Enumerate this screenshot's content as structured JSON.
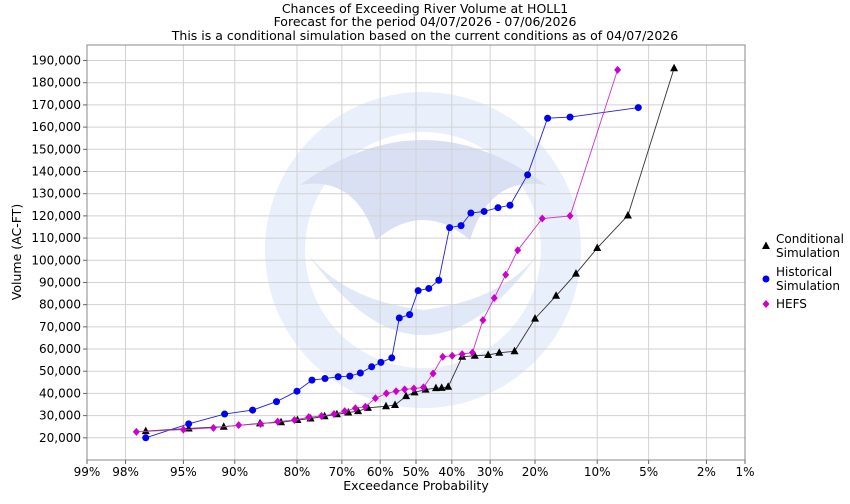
{
  "chart_data": {
    "type": "line",
    "title": "Chances of Exceeding River Volume at HOLL1",
    "subtitle_1": "Forecast for the period 04/07/2026 - 07/06/2026",
    "subtitle_2": "This is a conditional simulation based on the current conditions as of 04/07/2026",
    "xlabel": "Exceedance Probability",
    "ylabel": "Volume (AC-FT)",
    "x_scale": "normal-probability",
    "x_ticks": [
      {
        "value": 99,
        "label": "99%"
      },
      {
        "value": 98,
        "label": "98%"
      },
      {
        "value": 95,
        "label": "95%"
      },
      {
        "value": 90,
        "label": "90%"
      },
      {
        "value": 80,
        "label": "80%"
      },
      {
        "value": 70,
        "label": "70%"
      },
      {
        "value": 60,
        "label": "60%"
      },
      {
        "value": 50,
        "label": "50%"
      },
      {
        "value": 40,
        "label": "40%"
      },
      {
        "value": 30,
        "label": "30%"
      },
      {
        "value": 20,
        "label": "20%"
      },
      {
        "value": 10,
        "label": "10%"
      },
      {
        "value": 5,
        "label": "5%"
      },
      {
        "value": 2,
        "label": "2%"
      },
      {
        "value": 1,
        "label": "1%"
      }
    ],
    "ylim": [
      10000,
      197000
    ],
    "y_ticks": [
      {
        "value": 20000,
        "label": "20,000"
      },
      {
        "value": 30000,
        "label": "30,000"
      },
      {
        "value": 40000,
        "label": "40,000"
      },
      {
        "value": 50000,
        "label": "50,000"
      },
      {
        "value": 60000,
        "label": "60,000"
      },
      {
        "value": 70000,
        "label": "70,000"
      },
      {
        "value": 80000,
        "label": "80,000"
      },
      {
        "value": 90000,
        "label": "90,000"
      },
      {
        "value": 100000,
        "label": "100,000"
      },
      {
        "value": 110000,
        "label": "110,000"
      },
      {
        "value": 120000,
        "label": "120,000"
      },
      {
        "value": 130000,
        "label": "130,000"
      },
      {
        "value": 140000,
        "label": "140,000"
      },
      {
        "value": 150000,
        "label": "150,000"
      },
      {
        "value": 160000,
        "label": "160,000"
      },
      {
        "value": 170000,
        "label": "170,000"
      },
      {
        "value": 180000,
        "label": "180,000"
      },
      {
        "value": 190000,
        "label": "190,000"
      }
    ],
    "grid": true,
    "legend_position": "right",
    "series": [
      {
        "name": "Conditional Simulation",
        "legend_lines": [
          "Conditional",
          "Simulation"
        ],
        "marker": "triangle",
        "color": "#000000",
        "line_color": "#333333",
        "points": [
          [
            97.2,
            23000
          ],
          [
            94.6,
            24200
          ],
          [
            91.3,
            25000
          ],
          [
            86.5,
            26500
          ],
          [
            83.0,
            27000
          ],
          [
            79.9,
            28000
          ],
          [
            77.2,
            28700
          ],
          [
            74.1,
            29700
          ],
          [
            71.2,
            30600
          ],
          [
            68.4,
            31400
          ],
          [
            65.9,
            32000
          ],
          [
            63.3,
            33500
          ],
          [
            58.4,
            34200
          ],
          [
            55.9,
            34800
          ],
          [
            52.8,
            38800
          ],
          [
            50.4,
            40500
          ],
          [
            47.3,
            41700
          ],
          [
            44.4,
            42400
          ],
          [
            42.8,
            42500
          ],
          [
            41.0,
            43000
          ],
          [
            37.2,
            56500
          ],
          [
            33.9,
            57000
          ],
          [
            30.5,
            57300
          ],
          [
            27.8,
            58300
          ],
          [
            24.3,
            59000
          ],
          [
            20.0,
            73700
          ],
          [
            16.1,
            84000
          ],
          [
            12.9,
            94000
          ],
          [
            10.0,
            105500
          ],
          [
            6.7,
            120200
          ],
          [
            3.4,
            186500
          ]
        ]
      },
      {
        "name": "Historical Simulation",
        "legend_lines": [
          "Historical",
          "Simulation"
        ],
        "marker": "circle",
        "color": "#0000ee",
        "line_color": "#2020dd",
        "points": [
          [
            97.2,
            20000
          ],
          [
            94.6,
            26300
          ],
          [
            91.2,
            30700
          ],
          [
            87.6,
            32500
          ],
          [
            83.8,
            36300
          ],
          [
            80.0,
            41000
          ],
          [
            76.9,
            46000
          ],
          [
            74.0,
            46700
          ],
          [
            70.9,
            47500
          ],
          [
            68.0,
            47800
          ],
          [
            65.3,
            49200
          ],
          [
            62.3,
            52000
          ],
          [
            59.8,
            54000
          ],
          [
            56.8,
            56000
          ],
          [
            54.7,
            74000
          ],
          [
            51.8,
            75500
          ],
          [
            49.4,
            86300
          ],
          [
            46.4,
            87300
          ],
          [
            43.6,
            91000
          ],
          [
            40.6,
            114700
          ],
          [
            37.5,
            115600
          ],
          [
            34.9,
            121300
          ],
          [
            31.5,
            122000
          ],
          [
            28.1,
            123700
          ],
          [
            25.3,
            124800
          ],
          [
            21.5,
            138500
          ],
          [
            17.6,
            164000
          ],
          [
            13.8,
            164500
          ],
          [
            5.8,
            168800
          ]
        ]
      },
      {
        "name": "HEFS",
        "legend_lines": [
          "HEFS"
        ],
        "marker": "diamond",
        "color": "#cc00cc",
        "line_color": "#cc33cc",
        "points": [
          [
            97.6,
            22700
          ],
          [
            95.0,
            23700
          ],
          [
            92.4,
            24500
          ],
          [
            89.5,
            25700
          ],
          [
            86.4,
            26300
          ],
          [
            83.6,
            27300
          ],
          [
            80.5,
            28000
          ],
          [
            77.6,
            29300
          ],
          [
            74.8,
            29800
          ],
          [
            71.9,
            30700
          ],
          [
            69.3,
            32000
          ],
          [
            66.6,
            33300
          ],
          [
            64.0,
            34000
          ],
          [
            61.3,
            37800
          ],
          [
            58.3,
            40000
          ],
          [
            55.6,
            41000
          ],
          [
            53.2,
            41800
          ],
          [
            50.6,
            42200
          ],
          [
            47.9,
            42700
          ],
          [
            45.2,
            49000
          ],
          [
            42.5,
            56500
          ],
          [
            39.9,
            57000
          ],
          [
            37.2,
            57700
          ],
          [
            34.5,
            58400
          ],
          [
            31.8,
            73000
          ],
          [
            29.0,
            83000
          ],
          [
            26.3,
            93500
          ],
          [
            23.6,
            104500
          ],
          [
            18.6,
            118800
          ],
          [
            13.8,
            120000
          ],
          [
            7.7,
            185800
          ]
        ]
      }
    ]
  }
}
